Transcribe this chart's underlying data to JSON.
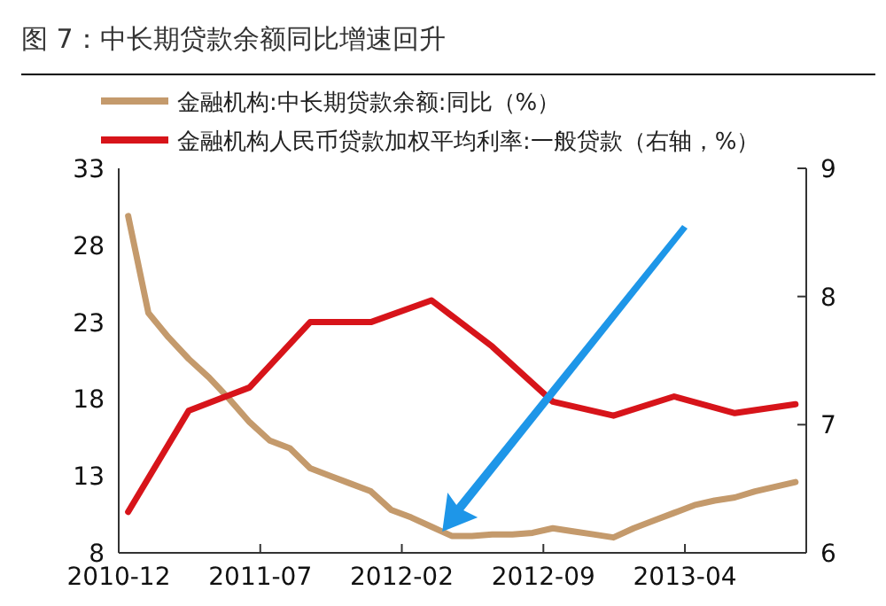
{
  "chart_data": {
    "type": "line",
    "title": "图 7：中长期贷款余额同比增速回升",
    "xlim": [
      "2010-12",
      "2013-10"
    ],
    "xticks": [
      "2010-12",
      "2011-07",
      "2012-02",
      "2012-09",
      "2013-04"
    ],
    "ylim": [
      8,
      33
    ],
    "yticks": [
      8,
      13,
      18,
      23,
      28,
      33
    ],
    "y2lim": [
      6,
      9
    ],
    "y2ticks": [
      6,
      7,
      8,
      9
    ],
    "legend": "top",
    "grid": false,
    "marker": "none",
    "line_style": "solid",
    "series": [
      {
        "name": "金融机构:中长期贷款余额:同比（%）",
        "color": "#c49a6c",
        "x": [
          "2010-12-15",
          "2011-01-15",
          "2011-02-15",
          "2011-03-15",
          "2011-04-15",
          "2011-05-15",
          "2011-06-15",
          "2011-07-15",
          "2011-08-15",
          "2011-09-15",
          "2011-10-15",
          "2011-11-15",
          "2011-12-15",
          "2012-01-15",
          "2012-02-15",
          "2012-03-15",
          "2012-04-15",
          "2012-05-15",
          "2012-06-15",
          "2012-07-15",
          "2012-08-15",
          "2012-09-15",
          "2012-10-15",
          "2012-11-15",
          "2012-12-15",
          "2013-01-15",
          "2013-02-15",
          "2013-03-15",
          "2013-04-15",
          "2013-05-15",
          "2013-06-15",
          "2013-07-15",
          "2013-08-15",
          "2013-09-15"
        ],
        "values": [
          29.9,
          23.6,
          22.0,
          20.6,
          19.4,
          18.0,
          16.5,
          15.3,
          14.8,
          13.5,
          13.0,
          12.5,
          12.0,
          10.8,
          10.3,
          9.7,
          9.1,
          9.1,
          9.2,
          9.2,
          9.3,
          9.6,
          9.4,
          9.2,
          9.0,
          9.6,
          10.1,
          10.6,
          11.1,
          11.4,
          11.6,
          12.0,
          12.3,
          12.6
        ]
      },
      {
        "name": "金融机构人民币贷款加权平均利率:一般贷款（右轴，%）",
        "color": "#d7141a",
        "axis": "y2",
        "x": [
          "2010-12-15",
          "2011-03-15",
          "2011-06-15",
          "2011-09-15",
          "2011-12-15",
          "2012-03-15",
          "2012-06-15",
          "2012-09-15",
          "2012-12-15",
          "2013-03-15",
          "2013-06-15",
          "2013-09-15"
        ],
        "values": [
          6.32,
          7.11,
          7.29,
          7.8,
          7.8,
          7.97,
          7.61,
          7.18,
          7.07,
          7.22,
          7.09,
          7.16
        ]
      }
    ]
  }
}
